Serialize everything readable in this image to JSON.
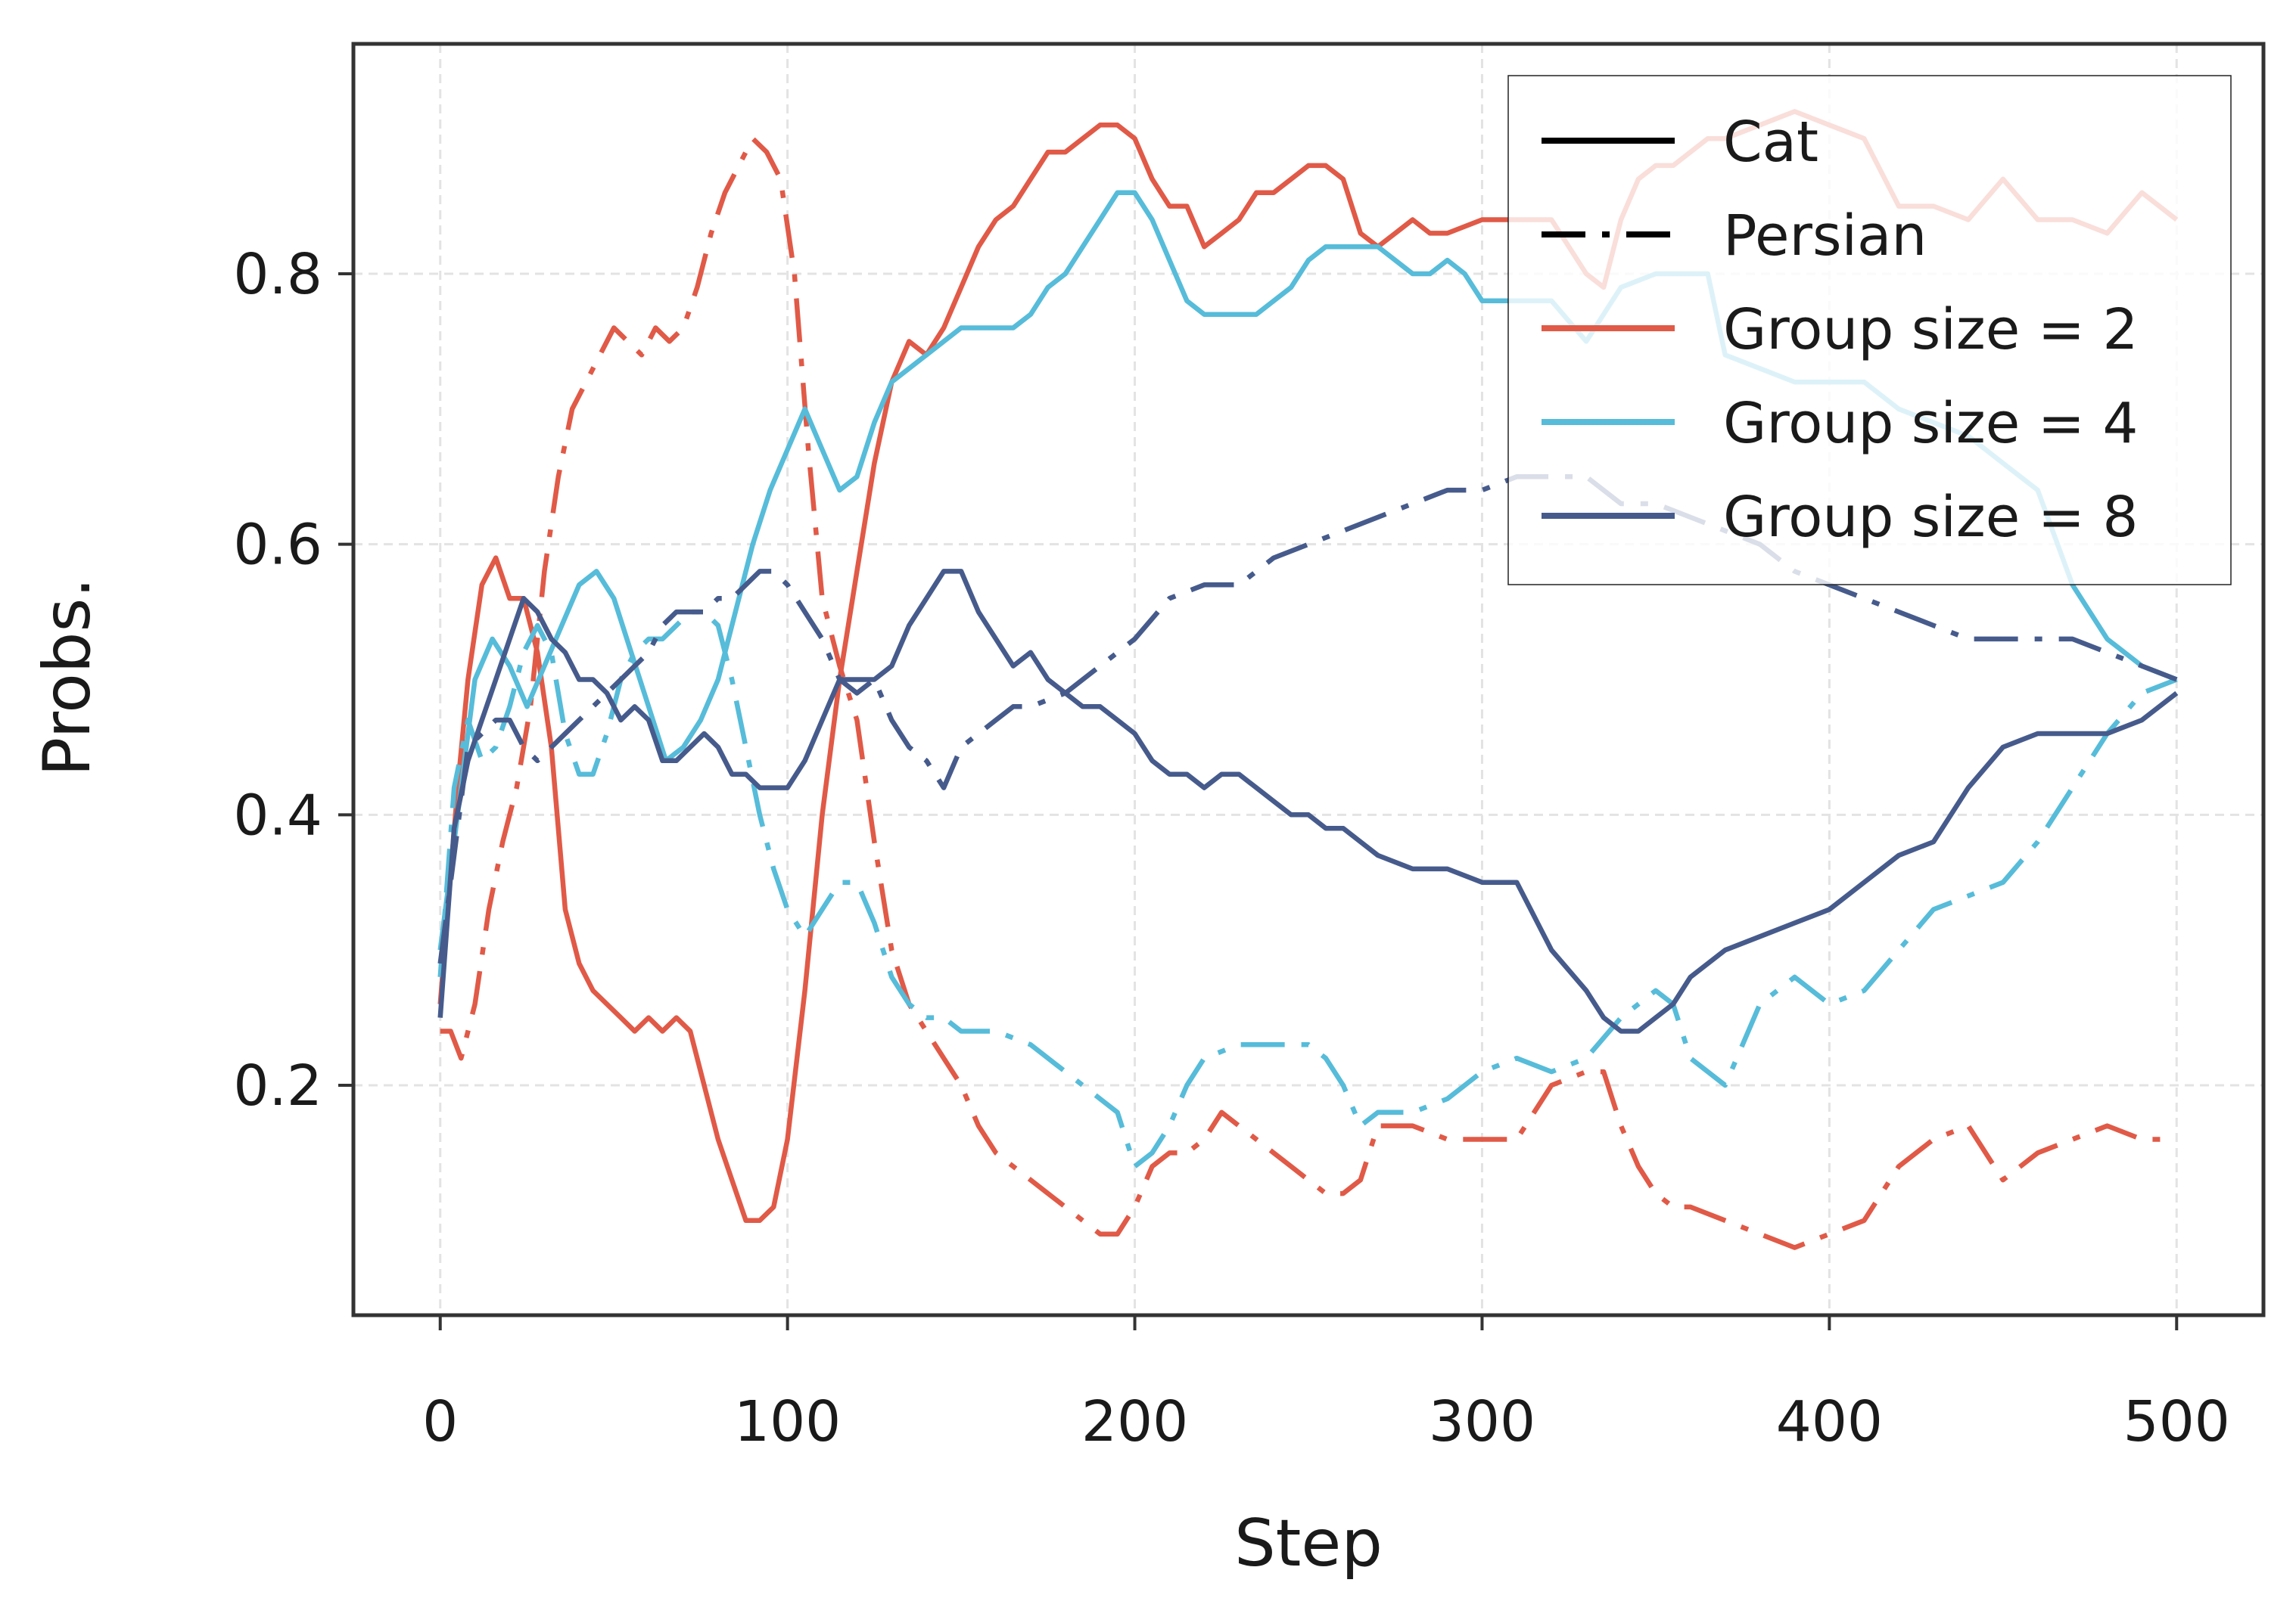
{
  "chart_data": {
    "type": "line",
    "title": "",
    "xlabel": "Step",
    "ylabel": "Probs.",
    "xlim": [
      -25,
      525
    ],
    "ylim": [
      0.03,
      0.97
    ],
    "xticks": [
      0,
      100,
      200,
      300,
      400,
      500
    ],
    "yticks": [
      0.2,
      0.4,
      0.6,
      0.8
    ],
    "xtick_labels": [
      "0",
      "100",
      "200",
      "300",
      "400",
      "500"
    ],
    "ytick_labels": [
      "0.2",
      "0.4",
      "0.6",
      "0.8"
    ],
    "grid": true,
    "legend_position": "top-right",
    "legend": {
      "style_entries": [
        {
          "label": "Cat",
          "style": "solid"
        },
        {
          "label": "Persian",
          "style": "dashdot"
        }
      ],
      "color_entries": [
        {
          "label": "Group size = 2",
          "color": "#e05a47"
        },
        {
          "label": "Group size = 4",
          "color": "#56bcd9"
        },
        {
          "label": "Group size = 8",
          "color": "#465b8c"
        }
      ]
    },
    "series": [
      {
        "name": "Group size = 2 (Cat)",
        "label_group": "Group size = 2",
        "label_token": "Cat",
        "style": "solid",
        "color": "#e05a47",
        "x": [
          0,
          5,
          8,
          12,
          16,
          20,
          24,
          28,
          32,
          36,
          40,
          44,
          48,
          52,
          56,
          60,
          64,
          68,
          72,
          76,
          80,
          84,
          88,
          92,
          96,
          100,
          105,
          110,
          115,
          120,
          125,
          130,
          135,
          140,
          145,
          150,
          155,
          160,
          165,
          170,
          175,
          180,
          185,
          190,
          195,
          200,
          205,
          210,
          215,
          220,
          225,
          230,
          235,
          240,
          245,
          250,
          255,
          260,
          265,
          270,
          275,
          280,
          285,
          290,
          300,
          310,
          320,
          330,
          335,
          340,
          345,
          350,
          355,
          360,
          365,
          370,
          380,
          390,
          400,
          410,
          420,
          430,
          440,
          450,
          460,
          470,
          480,
          490,
          500
        ],
        "y": [
          0.26,
          0.42,
          0.5,
          0.57,
          0.59,
          0.56,
          0.56,
          0.52,
          0.45,
          0.33,
          0.29,
          0.27,
          0.26,
          0.25,
          0.24,
          0.25,
          0.24,
          0.25,
          0.24,
          0.2,
          0.16,
          0.13,
          0.1,
          0.1,
          0.11,
          0.16,
          0.27,
          0.4,
          0.5,
          0.58,
          0.66,
          0.72,
          0.75,
          0.74,
          0.76,
          0.79,
          0.82,
          0.84,
          0.85,
          0.87,
          0.89,
          0.89,
          0.9,
          0.91,
          0.91,
          0.9,
          0.87,
          0.85,
          0.85,
          0.82,
          0.83,
          0.84,
          0.86,
          0.86,
          0.87,
          0.88,
          0.88,
          0.87,
          0.83,
          0.82,
          0.83,
          0.84,
          0.83,
          0.83,
          0.84,
          0.84,
          0.84,
          0.8,
          0.79,
          0.84,
          0.87,
          0.88,
          0.88,
          0.89,
          0.9,
          0.9,
          0.91,
          0.92,
          0.91,
          0.9,
          0.85,
          0.85,
          0.84,
          0.87,
          0.84,
          0.84,
          0.83,
          0.86,
          0.84
        ]
      },
      {
        "name": "Group size = 2 (Persian)",
        "label_group": "Group size = 2",
        "label_token": "Persian",
        "style": "dashdot",
        "color": "#e05a47",
        "x": [
          0,
          3,
          6,
          10,
          14,
          18,
          22,
          26,
          30,
          34,
          38,
          42,
          46,
          50,
          54,
          58,
          62,
          66,
          70,
          74,
          78,
          82,
          86,
          90,
          94,
          98,
          102,
          106,
          110,
          115,
          120,
          125,
          130,
          135,
          140,
          145,
          150,
          155,
          160,
          165,
          170,
          175,
          180,
          185,
          190,
          195,
          200,
          205,
          210,
          215,
          220,
          225,
          230,
          235,
          240,
          245,
          250,
          255,
          260,
          265,
          270,
          280,
          290,
          300,
          310,
          320,
          330,
          335,
          340,
          345,
          350,
          355,
          360,
          370,
          380,
          390,
          400,
          410,
          415,
          420,
          430,
          440,
          450,
          460,
          470,
          480,
          490,
          500
        ],
        "y": [
          0.24,
          0.24,
          0.22,
          0.26,
          0.33,
          0.38,
          0.42,
          0.48,
          0.58,
          0.65,
          0.7,
          0.72,
          0.74,
          0.76,
          0.75,
          0.74,
          0.76,
          0.75,
          0.76,
          0.79,
          0.83,
          0.86,
          0.88,
          0.9,
          0.89,
          0.87,
          0.8,
          0.67,
          0.56,
          0.51,
          0.47,
          0.38,
          0.3,
          0.26,
          0.24,
          0.22,
          0.2,
          0.17,
          0.15,
          0.14,
          0.13,
          0.12,
          0.11,
          0.1,
          0.09,
          0.09,
          0.11,
          0.14,
          0.15,
          0.15,
          0.16,
          0.18,
          0.17,
          0.16,
          0.15,
          0.14,
          0.13,
          0.12,
          0.12,
          0.13,
          0.17,
          0.17,
          0.16,
          0.16,
          0.16,
          0.2,
          0.21,
          0.21,
          0.17,
          0.14,
          0.12,
          0.11,
          0.11,
          0.1,
          0.09,
          0.08,
          0.09,
          0.1,
          0.12,
          0.14,
          0.16,
          0.17,
          0.13,
          0.15,
          0.16,
          0.17,
          0.16,
          0.16
        ]
      },
      {
        "name": "Group size = 4 (Cat)",
        "label_group": "Group size = 4",
        "label_token": "Cat",
        "style": "solid",
        "color": "#56bcd9",
        "x": [
          0,
          5,
          10,
          15,
          20,
          25,
          30,
          35,
          40,
          45,
          50,
          55,
          60,
          65,
          70,
          75,
          80,
          85,
          90,
          95,
          100,
          105,
          110,
          115,
          120,
          125,
          130,
          135,
          140,
          145,
          150,
          155,
          160,
          165,
          170,
          175,
          180,
          185,
          190,
          195,
          200,
          205,
          210,
          215,
          220,
          225,
          230,
          235,
          240,
          245,
          250,
          255,
          260,
          265,
          270,
          275,
          280,
          285,
          290,
          295,
          300,
          310,
          320,
          330,
          340,
          350,
          360,
          365,
          370,
          380,
          390,
          400,
          410,
          420,
          430,
          440,
          450,
          460,
          470,
          480,
          490,
          500
        ],
        "y": [
          0.3,
          0.4,
          0.5,
          0.53,
          0.51,
          0.48,
          0.51,
          0.54,
          0.57,
          0.58,
          0.56,
          0.52,
          0.48,
          0.44,
          0.45,
          0.47,
          0.5,
          0.55,
          0.6,
          0.64,
          0.67,
          0.7,
          0.67,
          0.64,
          0.65,
          0.69,
          0.72,
          0.73,
          0.74,
          0.75,
          0.76,
          0.76,
          0.76,
          0.76,
          0.77,
          0.79,
          0.8,
          0.82,
          0.84,
          0.86,
          0.86,
          0.84,
          0.81,
          0.78,
          0.77,
          0.77,
          0.77,
          0.77,
          0.78,
          0.79,
          0.81,
          0.82,
          0.82,
          0.82,
          0.82,
          0.81,
          0.8,
          0.8,
          0.81,
          0.8,
          0.78,
          0.78,
          0.78,
          0.75,
          0.79,
          0.8,
          0.8,
          0.8,
          0.74,
          0.73,
          0.72,
          0.72,
          0.72,
          0.7,
          0.69,
          0.68,
          0.66,
          0.64,
          0.57,
          0.53,
          0.51,
          0.5
        ]
      },
      {
        "name": "Group size = 4 (Persian)",
        "label_group": "Group size = 4",
        "label_token": "Persian",
        "style": "dashdot",
        "color": "#56bcd9",
        "x": [
          0,
          4,
          8,
          12,
          16,
          20,
          24,
          28,
          32,
          36,
          40,
          44,
          48,
          52,
          56,
          60,
          64,
          68,
          72,
          76,
          80,
          84,
          88,
          92,
          96,
          100,
          105,
          110,
          115,
          120,
          125,
          130,
          135,
          140,
          145,
          150,
          160,
          170,
          180,
          190,
          195,
          200,
          205,
          210,
          215,
          220,
          230,
          240,
          250,
          255,
          260,
          265,
          270,
          280,
          290,
          300,
          310,
          320,
          330,
          340,
          350,
          355,
          360,
          365,
          370,
          380,
          390,
          400,
          410,
          420,
          430,
          440,
          450,
          460,
          470,
          480,
          490,
          500
        ],
        "y": [
          0.28,
          0.42,
          0.47,
          0.44,
          0.45,
          0.48,
          0.52,
          0.54,
          0.52,
          0.46,
          0.43,
          0.43,
          0.46,
          0.5,
          0.52,
          0.53,
          0.53,
          0.54,
          0.55,
          0.55,
          0.54,
          0.5,
          0.45,
          0.4,
          0.36,
          0.33,
          0.31,
          0.33,
          0.35,
          0.35,
          0.32,
          0.28,
          0.26,
          0.25,
          0.25,
          0.24,
          0.24,
          0.23,
          0.21,
          0.19,
          0.18,
          0.14,
          0.15,
          0.17,
          0.2,
          0.22,
          0.23,
          0.23,
          0.23,
          0.22,
          0.2,
          0.17,
          0.18,
          0.18,
          0.19,
          0.21,
          0.22,
          0.21,
          0.22,
          0.25,
          0.27,
          0.26,
          0.22,
          0.21,
          0.2,
          0.26,
          0.28,
          0.26,
          0.27,
          0.3,
          0.33,
          0.34,
          0.35,
          0.38,
          0.42,
          0.46,
          0.49,
          0.5
        ]
      },
      {
        "name": "Group size = 8 (Cat)",
        "label_group": "Group size = 8",
        "label_token": "Cat",
        "style": "solid",
        "color": "#465b8c",
        "x": [
          0,
          4,
          8,
          12,
          16,
          20,
          24,
          28,
          32,
          36,
          40,
          44,
          48,
          52,
          56,
          60,
          64,
          68,
          72,
          76,
          80,
          84,
          88,
          92,
          96,
          100,
          105,
          110,
          115,
          120,
          125,
          130,
          135,
          140,
          145,
          150,
          155,
          160,
          165,
          170,
          175,
          180,
          185,
          190,
          195,
          200,
          205,
          210,
          215,
          220,
          225,
          230,
          235,
          240,
          245,
          250,
          255,
          260,
          265,
          270,
          280,
          290,
          300,
          310,
          320,
          330,
          335,
          340,
          345,
          350,
          355,
          360,
          370,
          380,
          390,
          400,
          410,
          420,
          430,
          440,
          450,
          460,
          470,
          480,
          490,
          500
        ],
        "y": [
          0.25,
          0.39,
          0.44,
          0.47,
          0.5,
          0.53,
          0.56,
          0.55,
          0.53,
          0.52,
          0.5,
          0.5,
          0.49,
          0.47,
          0.48,
          0.47,
          0.44,
          0.44,
          0.45,
          0.46,
          0.45,
          0.43,
          0.43,
          0.42,
          0.42,
          0.42,
          0.44,
          0.47,
          0.5,
          0.5,
          0.5,
          0.51,
          0.54,
          0.56,
          0.58,
          0.58,
          0.55,
          0.53,
          0.51,
          0.52,
          0.5,
          0.49,
          0.48,
          0.48,
          0.47,
          0.46,
          0.44,
          0.43,
          0.43,
          0.42,
          0.43,
          0.43,
          0.42,
          0.41,
          0.4,
          0.4,
          0.39,
          0.39,
          0.38,
          0.37,
          0.36,
          0.36,
          0.35,
          0.35,
          0.3,
          0.27,
          0.25,
          0.24,
          0.24,
          0.25,
          0.26,
          0.28,
          0.3,
          0.31,
          0.32,
          0.33,
          0.35,
          0.37,
          0.38,
          0.42,
          0.45,
          0.46,
          0.46,
          0.46,
          0.47,
          0.49
        ]
      },
      {
        "name": "Group size = 8 (Persian)",
        "label_group": "Group size = 8",
        "label_token": "Persian",
        "style": "dashdot",
        "color": "#465b8c",
        "x": [
          0,
          4,
          8,
          12,
          16,
          20,
          24,
          28,
          32,
          36,
          40,
          44,
          48,
          52,
          56,
          60,
          64,
          68,
          72,
          76,
          80,
          84,
          88,
          92,
          96,
          100,
          105,
          110,
          115,
          120,
          125,
          130,
          135,
          140,
          145,
          150,
          155,
          160,
          165,
          170,
          180,
          190,
          200,
          210,
          220,
          230,
          240,
          250,
          260,
          270,
          280,
          290,
          300,
          310,
          320,
          330,
          340,
          350,
          360,
          370,
          380,
          390,
          400,
          410,
          420,
          430,
          440,
          450,
          460,
          470,
          480,
          490,
          500
        ],
        "y": [
          0.29,
          0.37,
          0.45,
          0.46,
          0.47,
          0.47,
          0.45,
          0.44,
          0.45,
          0.46,
          0.47,
          0.48,
          0.49,
          0.5,
          0.51,
          0.52,
          0.54,
          0.55,
          0.55,
          0.55,
          0.56,
          0.56,
          0.57,
          0.58,
          0.58,
          0.57,
          0.55,
          0.53,
          0.5,
          0.49,
          0.5,
          0.47,
          0.45,
          0.44,
          0.42,
          0.45,
          0.46,
          0.47,
          0.48,
          0.48,
          0.49,
          0.51,
          0.53,
          0.56,
          0.57,
          0.57,
          0.59,
          0.6,
          0.61,
          0.62,
          0.63,
          0.64,
          0.64,
          0.65,
          0.65,
          0.65,
          0.63,
          0.63,
          0.62,
          0.61,
          0.6,
          0.58,
          0.57,
          0.56,
          0.55,
          0.54,
          0.53,
          0.53,
          0.53,
          0.53,
          0.52,
          0.51,
          0.5
        ]
      }
    ]
  }
}
